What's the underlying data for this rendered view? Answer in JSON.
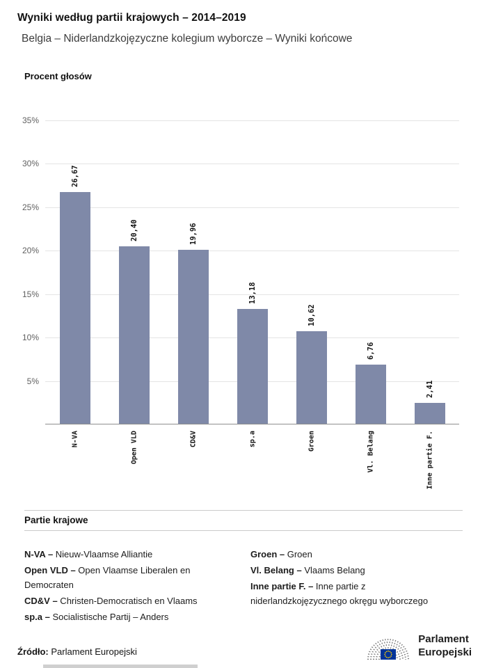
{
  "header": {
    "title": "Wyniki według partii krajowych – 2014–2019",
    "subtitle": "Belgia – Niderlandzkojęzyczne kolegium wyborcze – Wyniki końcowe"
  },
  "chart_data": {
    "type": "bar",
    "title": "Wyniki według partii krajowych – 2014–2019",
    "ylabel": "Procent głosów",
    "xlabel": "",
    "categories": [
      "N-VA",
      "Open VLD",
      "CD&V",
      "sp.a",
      "Groen",
      "Vl. Belang",
      "Inne partie F."
    ],
    "values": [
      26.67,
      20.4,
      19.96,
      13.18,
      10.62,
      6.76,
      2.41
    ],
    "value_labels": [
      "26,67",
      "20,40",
      "19,96",
      "13,18",
      "10,62",
      "6,76",
      "2,41"
    ],
    "ytick_values": [
      5,
      10,
      15,
      20,
      25,
      30,
      35
    ],
    "ytick_labels": [
      "5%",
      "10%",
      "15%",
      "20%",
      "25%",
      "30%",
      "35%"
    ],
    "ylim": [
      0,
      37.6
    ],
    "grid": true,
    "legend_position": "none",
    "bar_color": "#7f89a8"
  },
  "legend_section": {
    "title": "Partie krajowe",
    "columns": [
      [
        {
          "term": "N-VA –",
          "desc": "Nieuw-Vlaamse Alliantie"
        },
        {
          "term": "Open VLD –",
          "desc": "Open Vlaamse Liberalen en Democraten"
        },
        {
          "term": "CD&V –",
          "desc": "Christen-Democratisch en Vlaams"
        },
        {
          "term": "sp.a –",
          "desc": "Socialistische Partij – Anders"
        }
      ],
      [
        {
          "term": "Groen –",
          "desc": "Groen"
        },
        {
          "term": "Vl. Belang –",
          "desc": "Vlaams Belang"
        },
        {
          "term": "Inne partie F. –",
          "desc": "Inne partie z niderlandzkojęzycznego okręgu wyborczego"
        }
      ]
    ]
  },
  "source": {
    "label": "Źródło:",
    "text": "Parlament Europejski"
  },
  "logo": {
    "icon": "european-parliament-hemicycle-icon",
    "line1": "Parlament",
    "line2": "Europejski",
    "flag_color": "#003399",
    "star_color": "#ffcc00"
  }
}
